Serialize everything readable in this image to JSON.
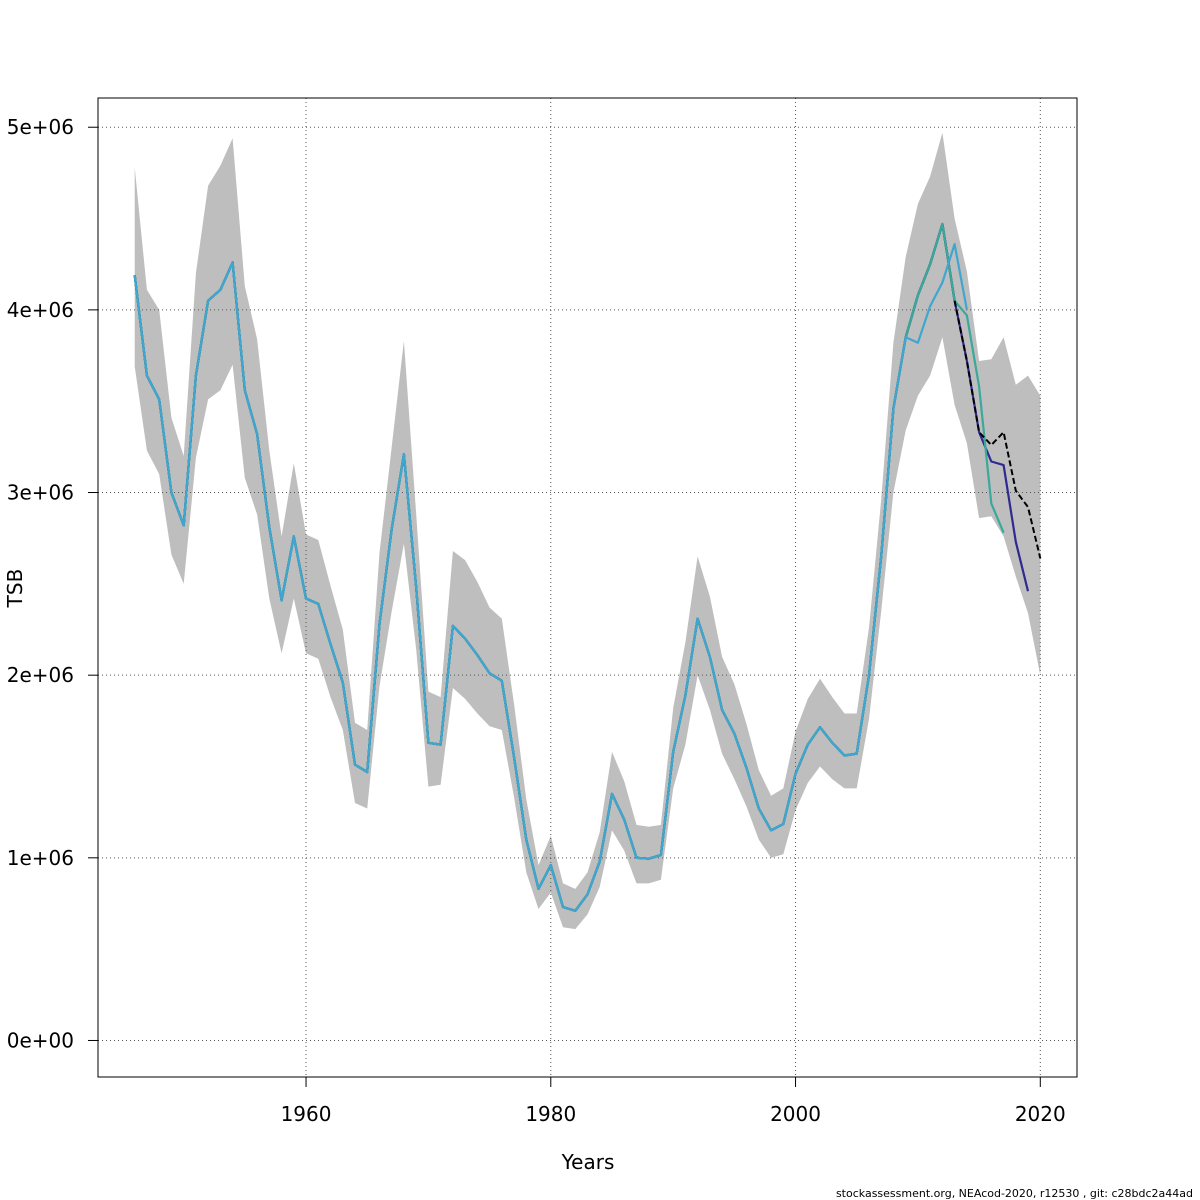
{
  "chart_data": {
    "type": "line",
    "title": "",
    "xlabel": "Years",
    "ylabel": "TSB",
    "xlim": [
      1943,
      2023
    ],
    "ylim": [
      -200000,
      5160000
    ],
    "xticks": [
      1960,
      1980,
      2000,
      2020
    ],
    "xtick_labels": [
      "1960",
      "1980",
      "2000",
      "2020"
    ],
    "yticks": [
      0,
      1000000,
      2000000,
      3000000,
      4000000,
      5000000
    ],
    "ytick_labels": [
      "0e+00",
      "1e+06",
      "2e+06",
      "3e+06",
      "4e+06",
      "5e+06"
    ],
    "grid": true,
    "x": [
      1946,
      1947,
      1948,
      1949,
      1950,
      1951,
      1952,
      1953,
      1954,
      1955,
      1956,
      1957,
      1958,
      1959,
      1960,
      1961,
      1962,
      1963,
      1964,
      1965,
      1966,
      1967,
      1968,
      1969,
      1970,
      1971,
      1972,
      1973,
      1974,
      1975,
      1976,
      1977,
      1978,
      1979,
      1980,
      1981,
      1982,
      1983,
      1984,
      1985,
      1986,
      1987,
      1988,
      1989,
      1990,
      1991,
      1992,
      1993,
      1994,
      1995,
      1996,
      1997,
      1998,
      1999,
      2000,
      2001,
      2002,
      2003,
      2004,
      2005,
      2006,
      2007,
      2008,
      2009,
      2010,
      2011,
      2012,
      2013,
      2014,
      2015,
      2016,
      2017,
      2018,
      2019,
      2020
    ],
    "estimate": [
      4190000,
      3640000,
      3510000,
      3000000,
      2820000,
      3640000,
      4050000,
      4110000,
      4260000,
      3560000,
      3320000,
      2810000,
      2410000,
      2760000,
      2420000,
      2390000,
      2170000,
      1960000,
      1510000,
      1470000,
      2280000,
      2800000,
      3210000,
      2480000,
      1630000,
      1620000,
      2270000,
      2200000,
      2110000,
      2010000,
      1970000,
      1550000,
      1100000,
      830000,
      960000,
      730000,
      710000,
      800000,
      980000,
      1350000,
      1210000,
      1000000,
      995000,
      1015000,
      1580000,
      1890000,
      2310000,
      2100000,
      1810000,
      1680000,
      1490000,
      1270000,
      1150000,
      1185000,
      1460000,
      1620000,
      1715000,
      1630000,
      1560000,
      1570000,
      2000000,
      2650000,
      3460000,
      3850000,
      4080000,
      4250000,
      4470000,
      4050000,
      3720000,
      3330000,
      3260000,
      3330000,
      3010000,
      2920000,
      2640000
    ],
    "ci_upper": [
      4780000,
      4110000,
      4000000,
      3410000,
      3200000,
      4200000,
      4680000,
      4790000,
      4940000,
      4130000,
      3840000,
      3230000,
      2760000,
      3160000,
      2770000,
      2740000,
      2490000,
      2250000,
      1740000,
      1700000,
      2670000,
      3250000,
      3830000,
      2880000,
      1910000,
      1880000,
      2680000,
      2630000,
      2510000,
      2370000,
      2310000,
      1840000,
      1320000,
      960000,
      1120000,
      860000,
      830000,
      920000,
      1140000,
      1580000,
      1420000,
      1180000,
      1170000,
      1180000,
      1820000,
      2180000,
      2650000,
      2430000,
      2100000,
      1950000,
      1730000,
      1480000,
      1340000,
      1380000,
      1690000,
      1870000,
      1980000,
      1880000,
      1790000,
      1790000,
      2260000,
      2960000,
      3820000,
      4290000,
      4580000,
      4730000,
      4970000,
      4500000,
      4210000,
      3720000,
      3730000,
      3850000,
      3590000,
      3640000,
      3530000
    ],
    "ci_lower": [
      3690000,
      3230000,
      3100000,
      2660000,
      2500000,
      3190000,
      3510000,
      3560000,
      3700000,
      3080000,
      2880000,
      2420000,
      2120000,
      2420000,
      2120000,
      2090000,
      1880000,
      1700000,
      1300000,
      1270000,
      1940000,
      2350000,
      2720000,
      2140000,
      1390000,
      1400000,
      1930000,
      1870000,
      1790000,
      1720000,
      1700000,
      1330000,
      920000,
      720000,
      810000,
      620000,
      610000,
      690000,
      840000,
      1150000,
      1040000,
      860000,
      860000,
      880000,
      1380000,
      1620000,
      2000000,
      1810000,
      1570000,
      1430000,
      1280000,
      1100000,
      1000000,
      1020000,
      1260000,
      1410000,
      1500000,
      1430000,
      1380000,
      1380000,
      1760000,
      2350000,
      3000000,
      3340000,
      3530000,
      3640000,
      3850000,
      3480000,
      3270000,
      2860000,
      2870000,
      2760000,
      2540000,
      2340000,
      2000000
    ],
    "series": [
      {
        "color": "#2E7D32",
        "x_end": 2013
      },
      {
        "color": "#7FA832",
        "x_end": 2013
      },
      {
        "color": "#1F5FA8",
        "x_end": 2013
      },
      {
        "color": "#2F2A8F",
        "x_end": 2019,
        "tail_x": [
          2016,
          2017,
          2018,
          2019
        ],
        "tail_y": [
          3170000,
          3150000,
          2730000,
          2460000
        ]
      },
      {
        "color": "#3AA89A",
        "x_end": 2017,
        "tail_x": [
          2014,
          2015,
          2016,
          2017
        ],
        "tail_y": [
          3970000,
          3580000,
          2940000,
          2780000
        ]
      },
      {
        "color": "#3FA6CF",
        "x_end": 2014,
        "tail_x": [
          2010,
          2011,
          2012,
          2013,
          2014
        ],
        "tail_y": [
          3820000,
          4020000,
          4150000,
          4360000,
          4000000
        ]
      }
    ],
    "ci_color": "#bebebe",
    "estimate_color": "#000000"
  },
  "footer": "stockassessment.org, NEAcod-2020, r12530 , git: c28bdc2a44ad"
}
